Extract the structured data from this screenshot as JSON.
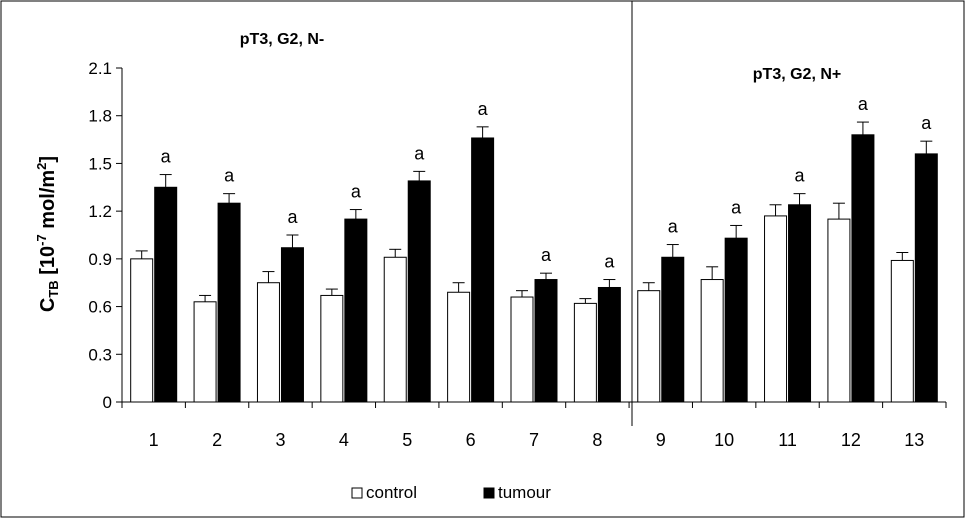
{
  "chart_data": {
    "type": "bar",
    "categories": [
      "1",
      "2",
      "3",
      "4",
      "5",
      "6",
      "7",
      "8",
      "9",
      "10",
      "11",
      "12",
      "13"
    ],
    "series": [
      {
        "name": "control",
        "color": "#ffffff",
        "values": [
          0.9,
          0.63,
          0.75,
          0.67,
          0.91,
          0.69,
          0.66,
          0.62,
          0.7,
          0.77,
          1.17,
          1.15,
          0.89
        ],
        "errors": [
          0.05,
          0.04,
          0.07,
          0.04,
          0.05,
          0.06,
          0.04,
          0.03,
          0.05,
          0.08,
          0.07,
          0.1,
          0.05
        ]
      },
      {
        "name": "tumour",
        "color": "#000000",
        "values": [
          1.35,
          1.25,
          0.97,
          1.15,
          1.39,
          1.66,
          0.77,
          0.72,
          0.91,
          1.03,
          1.24,
          1.68,
          1.56
        ],
        "errors": [
          0.08,
          0.06,
          0.08,
          0.06,
          0.06,
          0.07,
          0.04,
          0.05,
          0.08,
          0.08,
          0.07,
          0.08,
          0.08
        ]
      }
    ],
    "significance": [
      "a",
      "a",
      "a",
      "a",
      "a",
      "a",
      "a",
      "a",
      "a",
      "a",
      "a",
      "a",
      "a"
    ],
    "groups": [
      {
        "label": "pT3, G2, N-",
        "categories": [
          "1",
          "2",
          "3",
          "4",
          "5",
          "6",
          "7",
          "8"
        ]
      },
      {
        "label": "pT3, G2, N+",
        "categories": [
          "9",
          "10",
          "11",
          "12",
          "13"
        ]
      }
    ],
    "ylabel": {
      "main": "C",
      "sub": "TB",
      "bracket_open": " [10",
      "exp": "-7",
      "unit": " mol/m",
      "unit_exp": "2",
      "bracket_close": "]"
    },
    "ylim": [
      0,
      2.1
    ],
    "yticks": [
      "0",
      "0.3",
      "0.6",
      "0.9",
      "1.2",
      "1.5",
      "1.8",
      "2.1"
    ],
    "grid": false,
    "legend": {
      "position": "bottom"
    }
  }
}
